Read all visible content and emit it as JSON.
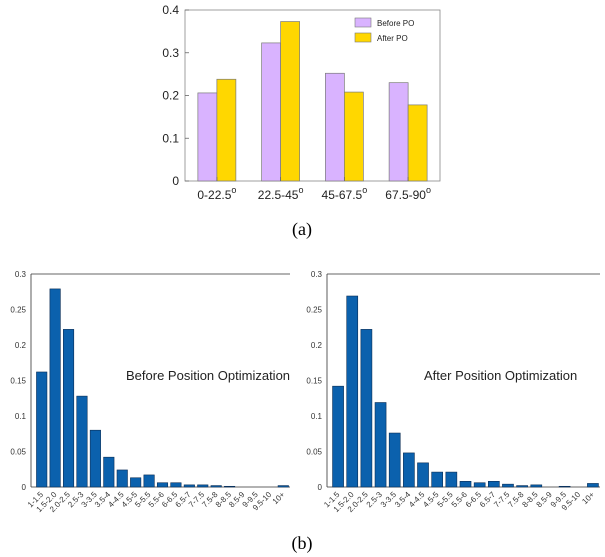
{
  "panel_labels": {
    "a": "(a)",
    "b": "(b)"
  },
  "chart_data": [
    {
      "type": "bar",
      "title": "",
      "xlabel": "",
      "ylabel": "",
      "categories": [
        "0-22.5",
        "22.5-45",
        "45-67.5",
        "67.5-90"
      ],
      "category_superscript": "o",
      "ylim": [
        0,
        0.4
      ],
      "yticks": [
        "0",
        "0.1",
        "0.2",
        "0.3",
        "0.4"
      ],
      "legend_position": "top-right",
      "series": [
        {
          "name": "Before PO",
          "values": [
            0.206,
            0.323,
            0.252,
            0.23
          ],
          "color": "#d9b3ff"
        },
        {
          "name": "After PO",
          "values": [
            0.238,
            0.373,
            0.208,
            0.178
          ],
          "color": "#ffd700"
        }
      ]
    },
    {
      "type": "bar",
      "title": "",
      "xlabel": "",
      "ylabel": "",
      "annotation": "Before Position Optimization",
      "categories": [
        "1-1.5",
        "1.5-2.0",
        "2.0-2.5",
        "2.5-3",
        "3-3.5",
        "3.5-4",
        "4-4.5",
        "4.5-5",
        "5-5.5",
        "5.5-6",
        "6-6.5",
        "6.5-7",
        "7-7.5",
        "7.5-8",
        "8-8.5",
        "8.5-9",
        "9-9.5",
        "9.5-10",
        "10+"
      ],
      "ylim": [
        0,
        0.3
      ],
      "yticks": [
        "0",
        "0.05",
        "0.1",
        "0.15",
        "0.2",
        "0.25",
        "0.3"
      ],
      "values": [
        0.162,
        0.279,
        0.222,
        0.128,
        0.08,
        0.042,
        0.024,
        0.013,
        0.017,
        0.006,
        0.006,
        0.003,
        0.003,
        0.002,
        0.001,
        0.0,
        0.0,
        0.0,
        0.002
      ],
      "color": "#0b61ad"
    },
    {
      "type": "bar",
      "title": "",
      "xlabel": "",
      "ylabel": "",
      "annotation": "After Position Optimization",
      "categories": [
        "1-1.5",
        "1.5-2.0",
        "2.0-2.5",
        "2.5-3",
        "3-3.5",
        "3.5-4",
        "4-4.5",
        "4.5-5",
        "5-5.5",
        "5.5-6",
        "6-6.5",
        "6.5-7",
        "7-7.5",
        "7.5-8",
        "8-8.5",
        "8.5-9",
        "9-9.5",
        "9.5-10",
        "10+"
      ],
      "ylim": [
        0,
        0.3
      ],
      "yticks": [
        "0",
        "0.05",
        "0.1",
        "0.15",
        "0.2",
        "0.25",
        "0.3"
      ],
      "values": [
        0.142,
        0.269,
        0.222,
        0.119,
        0.076,
        0.048,
        0.034,
        0.021,
        0.021,
        0.008,
        0.006,
        0.008,
        0.004,
        0.002,
        0.003,
        0.0,
        0.001,
        0.0,
        0.005
      ],
      "color": "#0b61ad"
    }
  ]
}
